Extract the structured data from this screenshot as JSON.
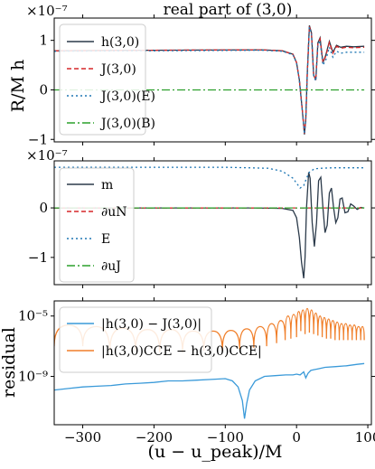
{
  "chart_data": [
    {
      "type": "line",
      "title": "real part of (3,0)",
      "ylabel": "R/M h",
      "offset_text": "×10⁻⁷",
      "xlim": [
        -340,
        105
      ],
      "ylim": [
        -1.05,
        1.45
      ],
      "yticks": [
        -1,
        0,
        1
      ],
      "ytick_labels": [
        "−1",
        "0",
        "1"
      ],
      "legend_placement": "top-left",
      "series": [
        {
          "name": "h(3,0)",
          "color": "#2b3a4a",
          "dash": "",
          "points": [
            [
              -340,
              0.79
            ],
            [
              -200,
              0.8
            ],
            [
              -50,
              0.81
            ],
            [
              -20,
              0.79
            ],
            [
              -5,
              0.72
            ],
            [
              0,
              0.55
            ],
            [
              4,
              0.2
            ],
            [
              8,
              -0.4
            ],
            [
              11,
              -0.9
            ],
            [
              13,
              -0.6
            ],
            [
              15,
              0.3
            ],
            [
              18,
              1.3
            ],
            [
              21,
              1.15
            ],
            [
              24,
              0.3
            ],
            [
              27,
              0.2
            ],
            [
              30,
              0.95
            ],
            [
              33,
              1.05
            ],
            [
              37,
              0.55
            ],
            [
              41,
              0.7
            ],
            [
              46,
              0.98
            ],
            [
              51,
              0.76
            ],
            [
              56,
              0.9
            ],
            [
              62,
              0.86
            ],
            [
              70,
              0.88
            ],
            [
              80,
              0.87
            ],
            [
              95,
              0.88
            ]
          ]
        },
        {
          "name": "J(3,0)",
          "color": "#d62728",
          "dash": "5,3",
          "points": [
            [
              -340,
              0.79
            ],
            [
              -200,
              0.8
            ],
            [
              -50,
              0.81
            ],
            [
              -20,
              0.79
            ],
            [
              -5,
              0.72
            ],
            [
              0,
              0.55
            ],
            [
              4,
              0.2
            ],
            [
              8,
              -0.4
            ],
            [
              11,
              -0.88
            ],
            [
              13,
              -0.58
            ],
            [
              15,
              0.3
            ],
            [
              18,
              1.28
            ],
            [
              21,
              1.13
            ],
            [
              24,
              0.3
            ],
            [
              27,
              0.2
            ],
            [
              30,
              0.93
            ],
            [
              33,
              1.03
            ],
            [
              37,
              0.55
            ],
            [
              41,
              0.68
            ],
            [
              46,
              0.96
            ],
            [
              51,
              0.74
            ],
            [
              56,
              0.88
            ],
            [
              62,
              0.84
            ],
            [
              70,
              0.86
            ],
            [
              80,
              0.85
            ],
            [
              95,
              0.86
            ]
          ]
        },
        {
          "name": "J(3,0)(E)",
          "color": "#1f77b4",
          "dash": "2,3",
          "points": [
            [
              -340,
              0.78
            ],
            [
              -200,
              0.79
            ],
            [
              -50,
              0.8
            ],
            [
              -20,
              0.78
            ],
            [
              -5,
              0.71
            ],
            [
              0,
              0.54
            ],
            [
              4,
              0.19
            ],
            [
              8,
              -0.41
            ],
            [
              11,
              -0.89
            ],
            [
              13,
              -0.59
            ],
            [
              15,
              0.29
            ],
            [
              18,
              1.27
            ],
            [
              21,
              1.12
            ],
            [
              24,
              0.28
            ],
            [
              27,
              0.18
            ],
            [
              30,
              0.9
            ],
            [
              33,
              0.98
            ],
            [
              37,
              0.5
            ],
            [
              41,
              0.6
            ],
            [
              46,
              0.86
            ],
            [
              51,
              0.66
            ],
            [
              56,
              0.78
            ],
            [
              62,
              0.74
            ],
            [
              70,
              0.76
            ],
            [
              80,
              0.76
            ],
            [
              95,
              0.76
            ]
          ]
        },
        {
          "name": "J(3,0)(B)",
          "color": "#2ca02c",
          "dash": "9,3,2,3",
          "points": [
            [
              -340,
              0.0
            ],
            [
              95,
              0.0
            ]
          ]
        }
      ]
    },
    {
      "type": "line",
      "title": "",
      "ylabel": "",
      "offset_text": "×10⁻⁷",
      "xlim": [
        -340,
        105
      ],
      "ylim": [
        -1.55,
        0.95
      ],
      "yticks": [
        -1,
        0
      ],
      "ytick_labels": [
        "−1",
        "0"
      ],
      "legend_placement": "left",
      "series": [
        {
          "name": "m",
          "color": "#2b3a4a",
          "dash": "",
          "points": [
            [
              -340,
              0.0
            ],
            [
              -60,
              0.0
            ],
            [
              -20,
              -0.01
            ],
            [
              -5,
              -0.05
            ],
            [
              0,
              -0.2
            ],
            [
              4,
              -0.6
            ],
            [
              7,
              -1.1
            ],
            [
              10,
              -1.42
            ],
            [
              12,
              -1.0
            ],
            [
              14,
              0.0
            ],
            [
              17,
              0.72
            ],
            [
              19,
              0.6
            ],
            [
              22,
              -0.3
            ],
            [
              25,
              -0.78
            ],
            [
              28,
              -0.3
            ],
            [
              31,
              0.55
            ],
            [
              34,
              0.62
            ],
            [
              37,
              0.0
            ],
            [
              40,
              -0.5
            ],
            [
              43,
              -0.35
            ],
            [
              46,
              0.3
            ],
            [
              49,
              0.4
            ],
            [
              52,
              0.0
            ],
            [
              55,
              -0.3
            ],
            [
              58,
              -0.2
            ],
            [
              61,
              0.18
            ],
            [
              64,
              0.2
            ],
            [
              68,
              -0.1
            ],
            [
              72,
              -0.08
            ],
            [
              76,
              0.08
            ],
            [
              80,
              0.04
            ],
            [
              85,
              -0.03
            ],
            [
              90,
              0.01
            ],
            [
              95,
              0.0
            ]
          ]
        },
        {
          "name": "∂uN",
          "color": "#d62728",
          "dash": "5,3",
          "points": [
            [
              -340,
              0.0
            ],
            [
              95,
              0.0
            ]
          ]
        },
        {
          "name": "E",
          "color": "#1f77b4",
          "dash": "2,3",
          "points": [
            [
              -340,
              0.82
            ],
            [
              -100,
              0.82
            ],
            [
              -40,
              0.8
            ],
            [
              -20,
              0.74
            ],
            [
              -5,
              0.6
            ],
            [
              5,
              0.4
            ],
            [
              10,
              0.45
            ],
            [
              14,
              0.6
            ],
            [
              18,
              0.72
            ],
            [
              25,
              0.79
            ],
            [
              35,
              0.8
            ],
            [
              50,
              0.81
            ],
            [
              95,
              0.81
            ]
          ]
        },
        {
          "name": "∂uJ",
          "color": "#2ca02c",
          "dash": "9,3,2,3",
          "points": [
            [
              -340,
              0.0
            ],
            [
              95,
              0.0
            ]
          ]
        }
      ]
    },
    {
      "type": "line",
      "title": "",
      "ylabel": "residual",
      "xlabel": "(u − u_peak)/M",
      "log_scale_y": true,
      "xlim": [
        -340,
        105
      ],
      "ylim_log10": [
        -12.2,
        -4.0
      ],
      "yticks_log10": [
        -9,
        -5
      ],
      "ytick_labels": [
        "10⁻⁹",
        "10⁻⁵"
      ],
      "xticks": [
        -300,
        -200,
        -100,
        0,
        100
      ],
      "xtick_labels": [
        "−300",
        "−200",
        "−100",
        "0",
        "100"
      ],
      "legend_placement": "top-left",
      "series": [
        {
          "name": "|h(3,0) − J(3,0)|",
          "color": "#3a9ad9",
          "log10_points": [
            [
              -340,
              -9.9
            ],
            [
              -320,
              -9.8
            ],
            [
              -300,
              -9.7
            ],
            [
              -280,
              -9.65
            ],
            [
              -260,
              -9.6
            ],
            [
              -240,
              -9.5
            ],
            [
              -220,
              -9.45
            ],
            [
              -200,
              -9.4
            ],
            [
              -180,
              -9.3
            ],
            [
              -160,
              -9.3
            ],
            [
              -140,
              -9.25
            ],
            [
              -120,
              -9.2
            ],
            [
              -100,
              -9.15
            ],
            [
              -90,
              -9.3
            ],
            [
              -82,
              -9.7
            ],
            [
              -76,
              -10.6
            ],
            [
              -73,
              -11.8
            ],
            [
              -70,
              -10.8
            ],
            [
              -66,
              -9.9
            ],
            [
              -58,
              -9.3
            ],
            [
              -45,
              -9.0
            ],
            [
              -30,
              -8.95
            ],
            [
              -15,
              -8.9
            ],
            [
              -5,
              -8.9
            ],
            [
              0,
              -8.85
            ],
            [
              5,
              -8.9
            ],
            [
              10,
              -8.7
            ],
            [
              13,
              -9.1
            ],
            [
              16,
              -8.8
            ],
            [
              20,
              -8.6
            ],
            [
              25,
              -8.55
            ],
            [
              30,
              -8.5
            ],
            [
              40,
              -8.4
            ],
            [
              55,
              -8.35
            ],
            [
              70,
              -8.3
            ],
            [
              85,
              -8.2
            ],
            [
              95,
              -8.15
            ]
          ]
        },
        {
          "name": "|h(3,0)CCE − h(3,0)CCE|",
          "color": "#f07f2a",
          "arcs": [
            [
              -340,
              -300,
              -5.6,
              -7.0
            ],
            [
              -300,
              -262,
              -5.7,
              -7.4
            ],
            [
              -262,
              -226,
              -5.8,
              -7.3
            ],
            [
              -226,
              -192,
              -5.9,
              -7.4
            ],
            [
              -192,
              -160,
              -5.9,
              -7.4
            ],
            [
              -160,
              -130,
              -6.0,
              -7.3
            ],
            [
              -130,
              -104,
              -6.0,
              -7.3
            ],
            [
              -104,
              -80,
              -5.95,
              -7.2
            ],
            [
              -80,
              -60,
              -5.85,
              -7.1
            ],
            [
              -60,
              -42,
              -5.7,
              -7.0
            ],
            [
              -42,
              -28,
              -5.5,
              -6.8
            ],
            [
              -28,
              -16,
              -5.3,
              -6.6
            ],
            [
              -16,
              -8,
              -5.0,
              -6.5
            ],
            [
              -8,
              0,
              -4.9,
              -6.4
            ],
            [
              0,
              6,
              -4.7,
              -6.0
            ],
            [
              6,
              12,
              -4.6,
              -6.2
            ],
            [
              12,
              18,
              -4.5,
              -6.1
            ],
            [
              18,
              24,
              -4.6,
              -6.2
            ],
            [
              24,
              30,
              -4.8,
              -6.3
            ],
            [
              30,
              36,
              -5.0,
              -6.4
            ],
            [
              36,
              42,
              -5.1,
              -6.5
            ],
            [
              42,
              48,
              -5.2,
              -6.5
            ],
            [
              48,
              54,
              -5.3,
              -6.6
            ],
            [
              54,
              60,
              -5.4,
              -6.6
            ],
            [
              60,
              66,
              -5.5,
              -6.6
            ],
            [
              66,
              72,
              -5.5,
              -6.6
            ],
            [
              72,
              78,
              -5.6,
              -6.6
            ],
            [
              78,
              84,
              -5.6,
              -6.6
            ],
            [
              84,
              90,
              -5.7,
              -6.6
            ],
            [
              90,
              95,
              -5.7,
              -6.6
            ]
          ]
        }
      ]
    }
  ]
}
